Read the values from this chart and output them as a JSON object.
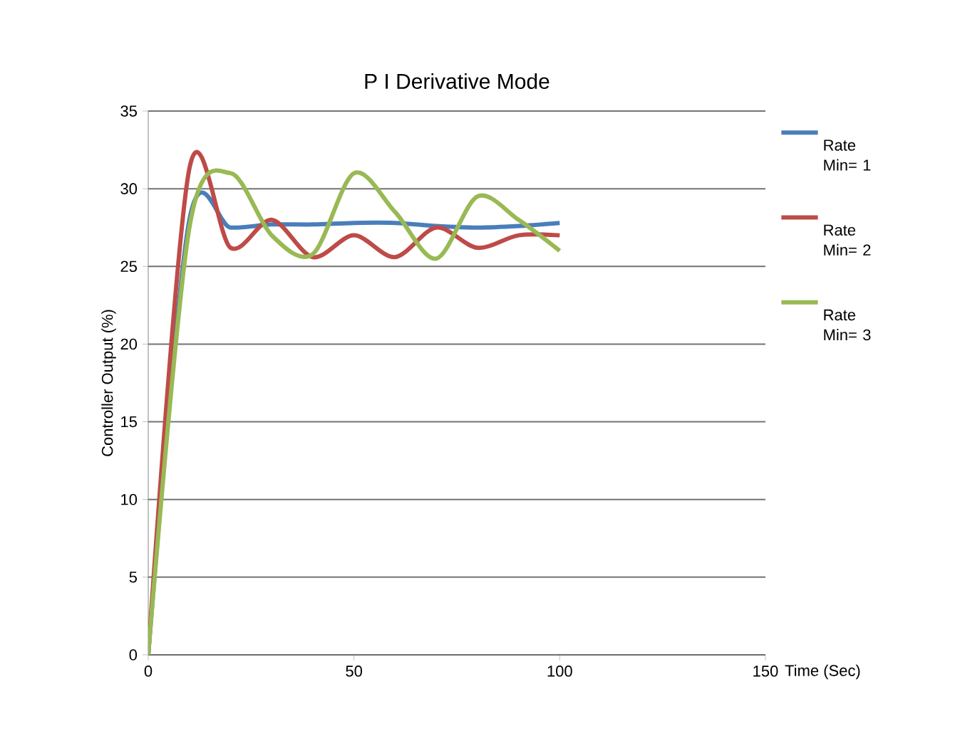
{
  "chart_data": {
    "type": "line",
    "title": "P I Derivative Mode",
    "xlabel": "Time (Sec)",
    "ylabel": "Controller Output  (%)",
    "x": [
      0,
      10,
      20,
      30,
      40,
      50,
      60,
      70,
      80,
      90,
      100
    ],
    "series": [
      {
        "name": "Rate Min= 1",
        "color": "#4a7ebb",
        "values": [
          0,
          28,
          27.5,
          27.7,
          27.7,
          27.8,
          27.8,
          27.6,
          27.5,
          27.6,
          27.8
        ]
      },
      {
        "name": "Rate Min= 2",
        "color": "#be4b48",
        "values": [
          0,
          31.3,
          26.2,
          28,
          25.6,
          27,
          25.6,
          27.5,
          26.2,
          27,
          27
        ]
      },
      {
        "name": "Rate Min= 3",
        "color": "#98b954",
        "values": [
          0,
          27.5,
          31,
          27,
          25.8,
          31,
          28.5,
          25.5,
          29.5,
          28,
          26
        ]
      }
    ],
    "xlim": [
      0,
      150
    ],
    "xticks": [
      0,
      50,
      100,
      150
    ],
    "ylim": [
      0,
      35
    ],
    "yticks": [
      0,
      5,
      10,
      15,
      20,
      25,
      30,
      35
    ],
    "grid": "y",
    "legend": "right",
    "marker": "none",
    "line_style": "solid"
  }
}
